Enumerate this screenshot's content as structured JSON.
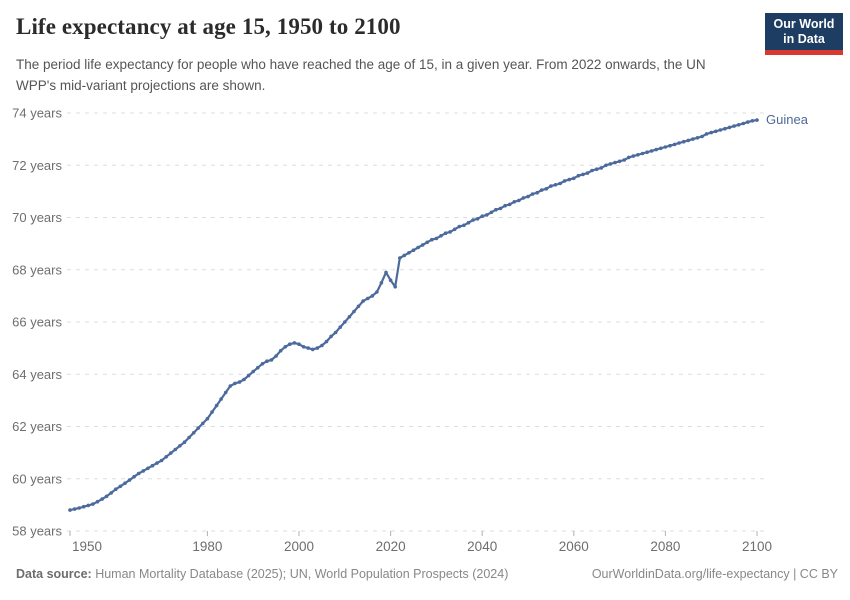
{
  "header": {
    "title": "Life expectancy at age 15, 1950 to 2100",
    "subtitle": "The period life expectancy for people who have reached the age of 15, in a given year. From 2022 onwards, the UN WPP's mid-variant projections are shown.",
    "logo": {
      "line1": "Our World",
      "line2": "in Data"
    }
  },
  "footer": {
    "source_label": "Data source:",
    "source_text": " Human Mortality Database (2025); UN, World Population Prospects (2024)",
    "rights": "OurWorldinData.org/life-expectancy | CC BY"
  },
  "colors": {
    "line": "#4c6a9c",
    "series_label": "#4c6a9c",
    "grid": "#dddddd",
    "axis_tick": "#b0b0b0",
    "tick_label": "#6e6e6e",
    "logo_navy": "#1d3d63",
    "logo_red": "#d7382f"
  },
  "chart_data": {
    "type": "line",
    "title": "Life expectancy at age 15, 1950 to 2100",
    "xlabel": "",
    "ylabel": "",
    "xlim": [
      1950,
      2100
    ],
    "ylim": [
      58,
      74
    ],
    "x_ticks": [
      1950,
      1980,
      2000,
      2020,
      2040,
      2060,
      2080,
      2100
    ],
    "y_ticks": [
      58,
      60,
      62,
      64,
      66,
      68,
      70,
      72,
      74
    ],
    "y_tick_suffix": " years",
    "grid": "horizontal-dashed",
    "legend_position": "end-of-line-label",
    "projection_note": "values from 2022 onward are UN WPP mid-variant projections",
    "series": [
      {
        "name": "Guinea",
        "x_start": 1950,
        "x_step": 1,
        "values": [
          58.8,
          58.84,
          58.88,
          58.93,
          58.98,
          59.03,
          59.12,
          59.22,
          59.33,
          59.46,
          59.6,
          59.71,
          59.83,
          59.95,
          60.08,
          60.2,
          60.3,
          60.4,
          60.5,
          60.6,
          60.7,
          60.84,
          60.98,
          61.12,
          61.26,
          61.4,
          61.58,
          61.76,
          61.94,
          62.12,
          62.3,
          62.55,
          62.8,
          63.05,
          63.3,
          63.55,
          63.65,
          63.7,
          63.8,
          63.95,
          64.1,
          64.25,
          64.4,
          64.5,
          64.55,
          64.7,
          64.9,
          65.05,
          65.15,
          65.2,
          65.15,
          65.05,
          65.0,
          64.95,
          65.0,
          65.1,
          65.25,
          65.45,
          65.6,
          65.8,
          66.0,
          66.2,
          66.4,
          66.6,
          66.8,
          66.9,
          67.0,
          67.15,
          67.5,
          67.9,
          67.6,
          67.35,
          68.45,
          68.55,
          68.65,
          68.75,
          68.85,
          68.95,
          69.05,
          69.15,
          69.2,
          69.3,
          69.4,
          69.45,
          69.55,
          69.65,
          69.7,
          69.8,
          69.9,
          69.95,
          70.05,
          70.1,
          70.2,
          70.3,
          70.35,
          70.45,
          70.5,
          70.6,
          70.65,
          70.75,
          70.8,
          70.9,
          70.95,
          71.05,
          71.1,
          71.2,
          71.25,
          71.3,
          71.4,
          71.45,
          71.5,
          71.6,
          71.65,
          71.7,
          71.8,
          71.85,
          71.9,
          72.0,
          72.05,
          72.1,
          72.15,
          72.2,
          72.3,
          72.35,
          72.4,
          72.45,
          72.5,
          72.55,
          72.6,
          72.65,
          72.7,
          72.75,
          72.8,
          72.85,
          72.9,
          72.95,
          73.0,
          73.05,
          73.1,
          73.2,
          73.25,
          73.3,
          73.35,
          73.4,
          73.45,
          73.5,
          73.55,
          73.6,
          73.65,
          73.7,
          73.73
        ]
      }
    ]
  }
}
